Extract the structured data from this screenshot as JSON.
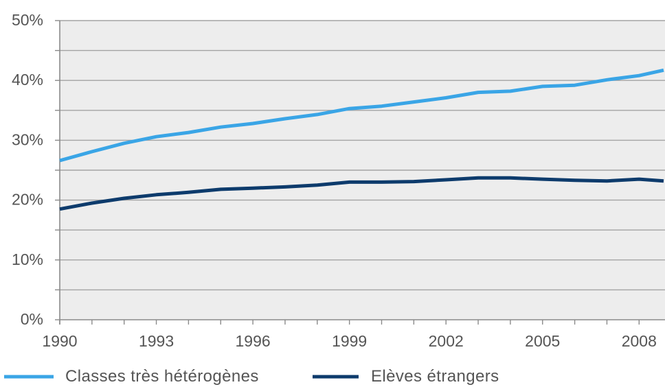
{
  "chart_data": {
    "type": "line",
    "x": [
      1990,
      1991,
      1992,
      1993,
      1994,
      1995,
      1996,
      1997,
      1998,
      1999,
      2000,
      2001,
      2002,
      2003,
      2004,
      2005,
      2006,
      2007,
      2008,
      2009
    ],
    "series": [
      {
        "name": "Classes très hétérogènes",
        "color": "#3aa5e6",
        "values": [
          26.6,
          28.1,
          29.5,
          30.6,
          31.3,
          32.2,
          32.8,
          33.6,
          34.3,
          35.3,
          35.7,
          36.4,
          37.1,
          38.0,
          38.2,
          39.0,
          39.2,
          40.1,
          40.8,
          42.0
        ]
      },
      {
        "name": "Elèves étrangers",
        "color": "#0d3b6c",
        "values": [
          18.5,
          19.5,
          20.3,
          20.9,
          21.3,
          21.8,
          22.0,
          22.2,
          22.5,
          23.0,
          23.0,
          23.1,
          23.4,
          23.7,
          23.7,
          23.5,
          23.3,
          23.2,
          23.5,
          23.1
        ]
      }
    ],
    "xticks": [
      1990,
      1993,
      1996,
      1999,
      2002,
      2005,
      2008
    ],
    "xtick_labels": [
      "1990",
      "1993",
      "1996",
      "1999",
      "2002",
      "2005",
      "2008"
    ],
    "yticks": [
      0,
      10,
      20,
      30,
      40,
      50
    ],
    "ytick_labels": [
      "0%",
      "10%",
      "20%",
      "30%",
      "40%",
      "50%"
    ],
    "ylim": [
      0,
      50
    ],
    "ygrid_step": 5,
    "grid": true,
    "legend": "bottom"
  }
}
